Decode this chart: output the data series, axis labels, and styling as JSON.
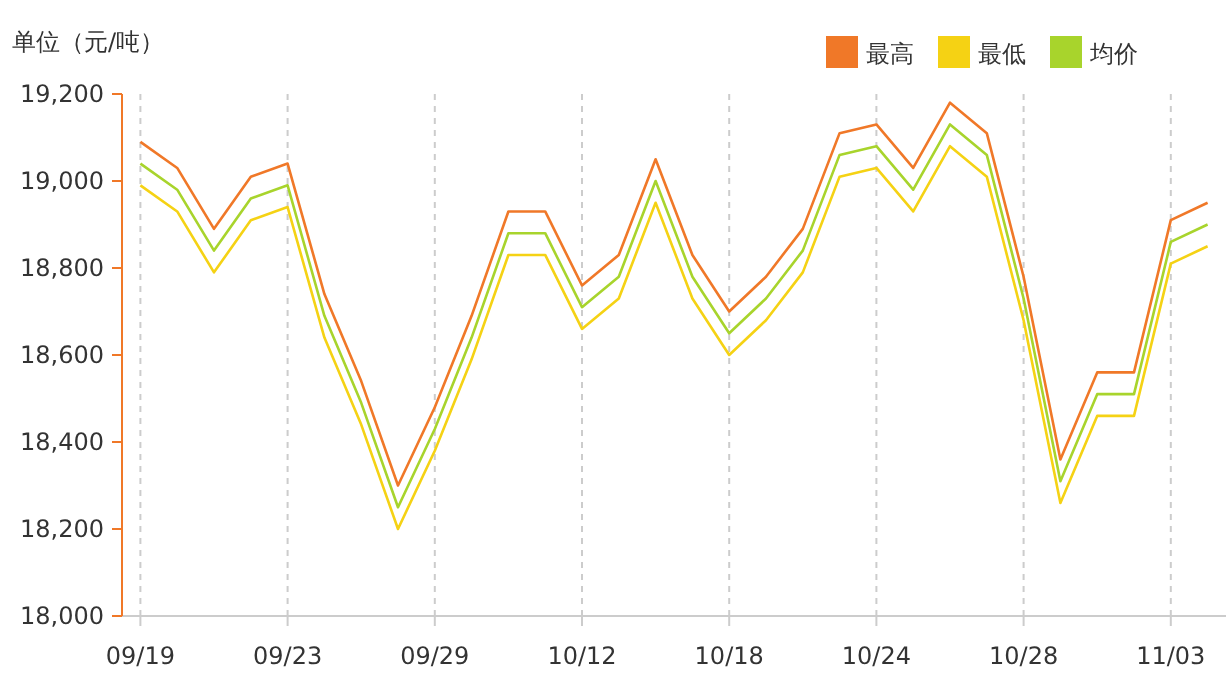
{
  "chart_data": {
    "type": "line",
    "ylabel": "单位（元/吨）",
    "categories": [
      "09/19",
      null,
      null,
      null,
      "09/23",
      null,
      null,
      null,
      "09/29",
      null,
      null,
      null,
      "10/12",
      null,
      null,
      null,
      "10/18",
      null,
      null,
      null,
      "10/24",
      null,
      null,
      null,
      "10/28",
      null,
      null,
      null,
      "11/03",
      null
    ],
    "series": [
      {
        "name": "最高",
        "color": "#f07828",
        "values": [
          19090,
          19030,
          18890,
          19010,
          19040,
          18740,
          18540,
          18300,
          18480,
          18690,
          18930,
          18930,
          18760,
          18830,
          19050,
          18830,
          18700,
          18780,
          18890,
          19110,
          19130,
          19030,
          19180,
          19110,
          18780,
          18360,
          18560,
          18560,
          18910,
          18950
        ]
      },
      {
        "name": "最低",
        "color": "#f5d214",
        "values": [
          18990,
          18930,
          18790,
          18910,
          18940,
          18640,
          18440,
          18200,
          18380,
          18590,
          18830,
          18830,
          18660,
          18730,
          18950,
          18730,
          18600,
          18680,
          18790,
          19010,
          19030,
          18930,
          19080,
          19010,
          18680,
          18260,
          18460,
          18460,
          18810,
          18850
        ]
      },
      {
        "name": "均价",
        "color": "#a8d42c",
        "values": [
          19040,
          18980,
          18840,
          18960,
          18990,
          18690,
          18490,
          18250,
          18430,
          18640,
          18880,
          18880,
          18710,
          18780,
          19000,
          18780,
          18650,
          18730,
          18840,
          19060,
          19080,
          18980,
          19130,
          19060,
          18730,
          18310,
          18510,
          18510,
          18860,
          18900
        ]
      }
    ],
    "ylim": [
      18000,
      19200
    ],
    "yticks": [
      {
        "value": 18000,
        "label": "18,000"
      },
      {
        "value": 18200,
        "label": "18,200"
      },
      {
        "value": 18400,
        "label": "18,400"
      },
      {
        "value": 18600,
        "label": "18,600"
      },
      {
        "value": 18800,
        "label": "18,800"
      },
      {
        "value": 19000,
        "label": "19,000"
      },
      {
        "value": 19200,
        "label": "19,200"
      }
    ],
    "grid": "x",
    "legend": "top right",
    "marker": "none",
    "line_style": "solid"
  }
}
